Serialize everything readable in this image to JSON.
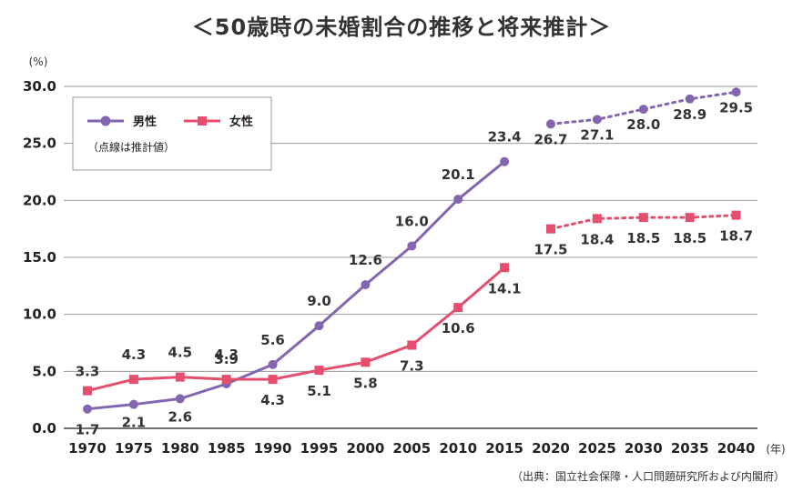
{
  "title": "＜50歳時の未婚割合の推移と将来推計＞",
  "source": "（出典：国立社会保障・人口問題研究所および内閣府）",
  "legend_note": "（点線は推計値）",
  "chart_data": {
    "type": "line",
    "title": "＜50歳時の未婚割合の推移と将来推計＞",
    "y_unit": "(%)",
    "x_unit": "(年)",
    "x": [
      1970,
      1975,
      1980,
      1985,
      1990,
      1995,
      2000,
      2005,
      2010,
      2015,
      2020,
      2025,
      2030,
      2035,
      2040
    ],
    "ylim": [
      0,
      30
    ],
    "y_ticks": [
      "0.0",
      "5.0",
      "10.0",
      "15.0",
      "20.0",
      "25.0",
      "30.0"
    ],
    "grid": true,
    "legend_position": "top-left",
    "series": [
      {
        "name": "男性",
        "color": "#8466b0",
        "marker": "circle",
        "values": [
          1.7,
          2.1,
          2.6,
          3.9,
          5.6,
          9.0,
          12.6,
          16.0,
          20.1,
          23.4,
          26.7,
          27.1,
          28.0,
          28.9,
          29.5
        ],
        "labels": [
          "1.7",
          "2.1",
          "2.6",
          "3.9",
          "5.6",
          "9.0",
          "12.6",
          "16.0",
          "20.1",
          "23.4",
          "26.7",
          "27.1",
          "28.0",
          "28.9",
          "29.5"
        ],
        "projected_from": 2020
      },
      {
        "name": "女性",
        "color": "#e54e6d",
        "marker": "square",
        "values": [
          3.3,
          4.3,
          4.5,
          4.3,
          4.3,
          5.1,
          5.8,
          7.3,
          10.6,
          14.1,
          17.5,
          18.4,
          18.5,
          18.5,
          18.7
        ],
        "labels": [
          "3.3",
          "4.3",
          "4.5",
          "4.3",
          "4.3",
          "5.1",
          "5.8",
          "7.3",
          "10.6",
          "14.1",
          "17.5",
          "18.4",
          "18.5",
          "18.5",
          "18.7"
        ],
        "projected_from": 2020
      }
    ]
  }
}
